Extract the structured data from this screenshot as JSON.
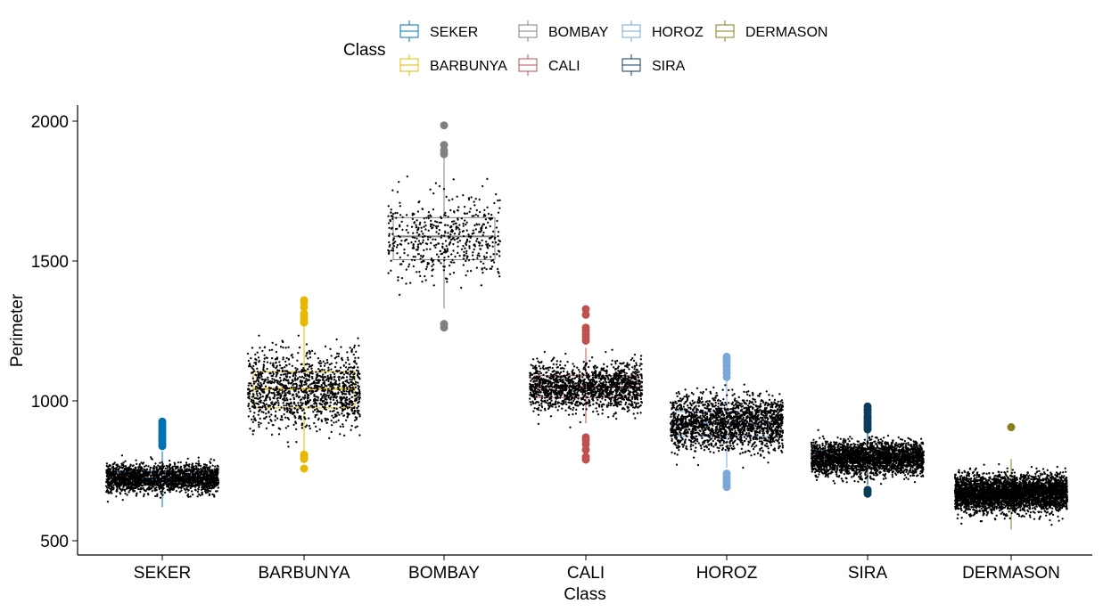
{
  "chart_data": {
    "type": "boxplot",
    "title": "",
    "xlabel": "Class",
    "ylabel": "Perimeter",
    "ylim": [
      450,
      2050
    ],
    "yticks": [
      500,
      1000,
      1500,
      2000
    ],
    "grid": false,
    "legend": {
      "title": "Class",
      "placement": "top",
      "entries": [
        "SEKER",
        "BARBUNYA",
        "BOMBAY",
        "CALI",
        "HOROZ",
        "SIRA",
        "DERMASON"
      ]
    },
    "categories": [
      "SEKER",
      "BARBUNYA",
      "BOMBAY",
      "CALI",
      "HOROZ",
      "SIRA",
      "DERMASON"
    ],
    "series": [
      {
        "name": "SEKER",
        "color": "#0072B2",
        "min": 620,
        "q1": 700,
        "median": 723,
        "q3": 748,
        "max": 820,
        "outliers": [
          838,
          846,
          854,
          862,
          870,
          878,
          886,
          894,
          902,
          910,
          918,
          926
        ],
        "jitter_count": 2000
      },
      {
        "name": "BARBUNYA",
        "color": "#E7B800",
        "min": 812,
        "q1": 975,
        "median": 1043,
        "q3": 1104,
        "max": 1268,
        "outliers": [
          758,
          792,
          800,
          808,
          1280,
          1290,
          1300,
          1312,
          1335,
          1352,
          1360
        ],
        "jitter_count": 1300
      },
      {
        "name": "BOMBAY",
        "color": "#808080",
        "min": 1330,
        "q1": 1505,
        "median": 1588,
        "q3": 1655,
        "max": 1868,
        "outliers": [
          1262,
          1275,
          1882,
          1895,
          1915,
          1985
        ],
        "jitter_count": 520
      },
      {
        "name": "CALI",
        "color": "#C0504D",
        "min": 920,
        "q1": 1012,
        "median": 1050,
        "q3": 1090,
        "max": 1190,
        "outliers": [
          790,
          800,
          825,
          845,
          860,
          870,
          1215,
          1228,
          1238,
          1250,
          1262,
          1308,
          1328
        ],
        "jitter_count": 1630
      },
      {
        "name": "HOROZ",
        "color": "#7BA7D7",
        "min": 760,
        "q1": 873,
        "median": 920,
        "q3": 962,
        "max": 1080,
        "outliers": [
          692,
          700,
          710,
          720,
          730,
          740,
          1085,
          1100,
          1112,
          1125,
          1138,
          1150,
          1158
        ],
        "jitter_count": 1930
      },
      {
        "name": "SIRA",
        "color": "#0B3C5D",
        "min": 700,
        "q1": 768,
        "median": 795,
        "q3": 825,
        "max": 890,
        "outliers": [
          668,
          675,
          682,
          898,
          906,
          914,
          922,
          930,
          938,
          946,
          958,
          968,
          980
        ],
        "jitter_count": 2640
      },
      {
        "name": "DERMASON",
        "color": "#8B7D1A",
        "min": 540,
        "q1": 637,
        "median": 670,
        "q3": 700,
        "max": 792,
        "outliers": [
          906
        ],
        "jitter_count": 3540
      }
    ]
  }
}
